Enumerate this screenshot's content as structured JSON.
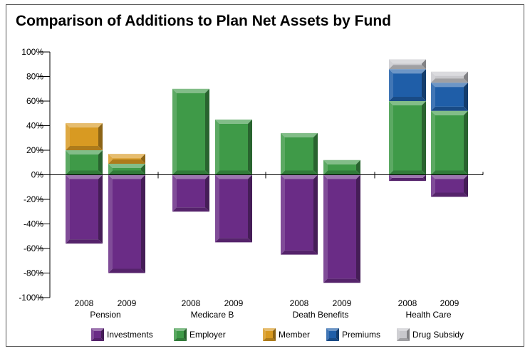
{
  "chart_data": {
    "type": "bar",
    "stacked": true,
    "title": "Comparison of Additions to Plan Net Assets by Fund",
    "xlabel": "",
    "ylabel": "",
    "ylim": [
      -100,
      100
    ],
    "y_ticks": [
      100,
      80,
      60,
      40,
      20,
      0,
      -20,
      -40,
      -60,
      -80,
      -100
    ],
    "y_tick_labels": [
      "100%",
      "80%",
      "60%",
      "40%",
      "20%",
      "0%",
      "-20%",
      "-40%",
      "-60%",
      "-80%",
      "-100%"
    ],
    "groups": [
      "Pension",
      "Medicare B",
      "Death Benefits",
      "Health Care"
    ],
    "categories": [
      "2008",
      "2009",
      "2008",
      "2009",
      "2008",
      "2009",
      "2008",
      "2009"
    ],
    "legend_position": "bottom",
    "series": [
      {
        "name": "Investments",
        "color": "#6a2c86",
        "values": [
          -56,
          -80,
          -30,
          -55,
          -65,
          -88,
          -5,
          -18
        ]
      },
      {
        "name": "Employer",
        "color": "#3f9a48",
        "values": [
          20,
          9,
          70,
          45,
          34,
          12,
          60,
          52
        ]
      },
      {
        "name": "Member",
        "color": "#d89a22",
        "values": [
          22,
          8,
          0,
          0,
          0,
          0,
          0,
          0
        ]
      },
      {
        "name": "Premiums",
        "color": "#1f5ea8",
        "values": [
          0,
          0,
          0,
          0,
          0,
          0,
          26,
          23
        ]
      },
      {
        "name": "Drug Subsidy",
        "color": "#c8c8cc",
        "values": [
          0,
          0,
          0,
          0,
          0,
          0,
          8,
          9
        ]
      }
    ]
  }
}
